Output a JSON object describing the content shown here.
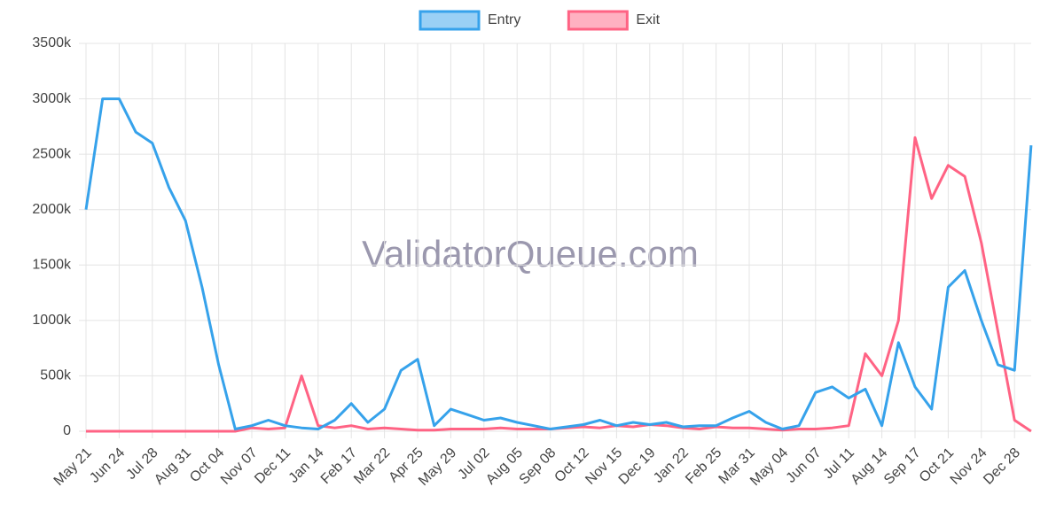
{
  "chart_data": {
    "type": "line",
    "categories": [
      "May 21",
      null,
      "Jun 24",
      null,
      "Jul 28",
      null,
      "Aug 31",
      null,
      "Oct 04",
      null,
      "Nov 07",
      null,
      "Dec 11",
      null,
      "Jan 14",
      null,
      "Feb 17",
      null,
      "Mar 22",
      null,
      "Apr 25",
      null,
      "May 29",
      null,
      "Jul 02",
      null,
      "Aug 05",
      null,
      "Sep 08",
      null,
      "Oct 12",
      null,
      "Nov 15",
      null,
      "Dec 19",
      null,
      "Jan 22",
      null,
      "Feb 25",
      null,
      "Mar 31",
      null,
      "May 04",
      null,
      "Jun 07",
      null,
      "Jul 11",
      null,
      "Aug 14",
      null,
      "Sep 17",
      null,
      "Oct 21",
      null,
      "Nov 24",
      null,
      "Dec 28",
      null
    ],
    "series": [
      {
        "name": "Entry",
        "color": "#36a2eb",
        "values": [
          2000,
          3000,
          3000,
          2700,
          2600,
          2200,
          1900,
          1300,
          600,
          20,
          50,
          100,
          50,
          30,
          20,
          100,
          250,
          80,
          200,
          550,
          650,
          50,
          200,
          150,
          100,
          120,
          80,
          50,
          20,
          40,
          60,
          100,
          50,
          80,
          60,
          80,
          40,
          50,
          50,
          120,
          180,
          80,
          20,
          50,
          350,
          400,
          300,
          380,
          50,
          800,
          400,
          200,
          1300,
          1450,
          1000,
          600,
          550,
          2580
        ]
      },
      {
        "name": "Exit",
        "color": "#ff6384",
        "values": [
          0,
          0,
          0,
          0,
          0,
          0,
          0,
          0,
          0,
          0,
          30,
          20,
          30,
          500,
          50,
          30,
          50,
          20,
          30,
          20,
          10,
          10,
          20,
          20,
          20,
          30,
          20,
          20,
          20,
          30,
          40,
          30,
          50,
          40,
          60,
          50,
          30,
          20,
          40,
          30,
          30,
          20,
          10,
          20,
          20,
          30,
          50,
          700,
          500,
          1000,
          2650,
          2100,
          2400,
          2300,
          1700,
          900,
          100,
          0
        ]
      }
    ],
    "ylim": [
      0,
      3500
    ],
    "yticks": [
      0,
      {
        "value": 500,
        "label": "500k"
      },
      {
        "value": 1000,
        "label": "1000k"
      },
      {
        "value": 1500,
        "label": "1500k"
      },
      {
        "value": 2000,
        "label": "2000k"
      },
      {
        "value": 2500,
        "label": "2500k"
      },
      {
        "value": 3000,
        "label": "3000k"
      },
      {
        "value": 3500,
        "label": "3500k"
      }
    ],
    "grid": true,
    "legend": "top",
    "watermark": "ValidatorQueue.com"
  }
}
